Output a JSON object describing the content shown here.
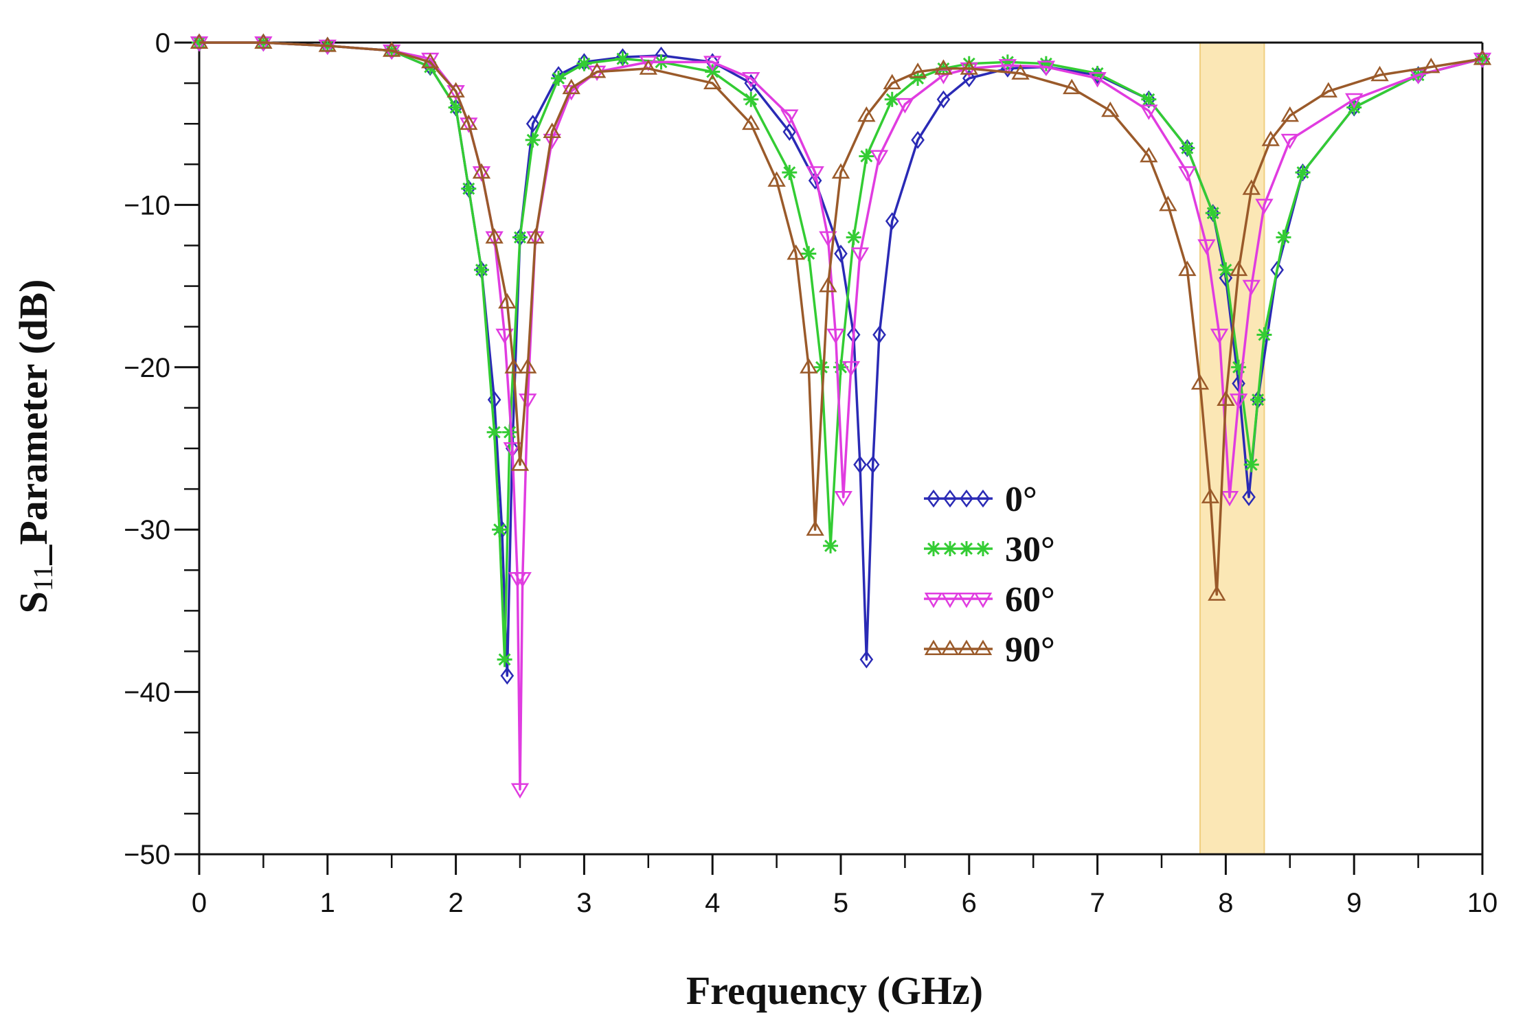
{
  "chart_data": {
    "type": "line",
    "title": "",
    "xlabel": "Frequency (GHz)",
    "ylabel_main": "S",
    "ylabel_sub": "11",
    "ylabel_rest": "_Parameter (dB)",
    "xlim": [
      0,
      10
    ],
    "ylim": [
      -50,
      0
    ],
    "x_ticks": [
      0,
      1,
      2,
      3,
      4,
      5,
      6,
      7,
      8,
      9,
      10
    ],
    "x_tick_labels": [
      "0",
      "1",
      "2",
      "3",
      "4",
      "5",
      "6",
      "7",
      "8",
      "9",
      "10"
    ],
    "y_ticks": [
      0,
      -10,
      -20,
      -30,
      -40,
      -50
    ],
    "y_tick_labels": [
      "0",
      "−10",
      "−20",
      "−30",
      "−40",
      "−50"
    ],
    "highlight_band": {
      "x_start": 7.8,
      "x_end": 8.3,
      "color": "#fbe7b5",
      "edge_color": "#f0cf80"
    },
    "legend_position": "center-right",
    "series": [
      {
        "name": "0°",
        "color": "#2a2ab5",
        "marker": "diamond",
        "x": [
          0,
          0.5,
          1,
          1.5,
          1.8,
          2.0,
          2.1,
          2.2,
          2.3,
          2.36,
          2.4,
          2.44,
          2.5,
          2.6,
          2.8,
          3.0,
          3.3,
          3.6,
          4.0,
          4.3,
          4.6,
          4.8,
          5.0,
          5.1,
          5.15,
          5.2,
          5.25,
          5.3,
          5.4,
          5.6,
          5.8,
          6.0,
          6.3,
          6.6,
          7.0,
          7.4,
          7.7,
          7.9,
          8.0,
          8.1,
          8.18,
          8.25,
          8.4,
          8.6,
          9.0,
          9.5,
          10
        ],
        "y": [
          0,
          0,
          -0.2,
          -0.5,
          -1.5,
          -4,
          -9,
          -14,
          -22,
          -30,
          -39,
          -25,
          -12,
          -5,
          -2,
          -1.2,
          -0.9,
          -0.8,
          -1.2,
          -2.5,
          -5.5,
          -8.5,
          -13,
          -18,
          -26,
          -38,
          -26,
          -18,
          -11,
          -6,
          -3.5,
          -2.2,
          -1.6,
          -1.5,
          -2,
          -3.5,
          -6.5,
          -10.5,
          -14.5,
          -21,
          -28,
          -22,
          -14,
          -8,
          -4,
          -2,
          -1
        ]
      },
      {
        "name": "30°",
        "color": "#33cc33",
        "marker": "asterisk",
        "x": [
          0,
          0.5,
          1,
          1.5,
          1.8,
          2.0,
          2.1,
          2.2,
          2.3,
          2.34,
          2.38,
          2.42,
          2.5,
          2.6,
          2.8,
          3.0,
          3.3,
          3.6,
          4.0,
          4.3,
          4.6,
          4.75,
          4.85,
          4.92,
          5.0,
          5.1,
          5.2,
          5.4,
          5.6,
          5.8,
          6.0,
          6.3,
          6.6,
          7.0,
          7.4,
          7.7,
          7.9,
          8.0,
          8.1,
          8.2,
          8.25,
          8.3,
          8.45,
          8.6,
          9.0,
          9.5,
          10
        ],
        "y": [
          0,
          0,
          -0.2,
          -0.5,
          -1.5,
          -4,
          -9,
          -14,
          -24,
          -30,
          -38,
          -24,
          -12,
          -6,
          -2.2,
          -1.3,
          -1,
          -1.2,
          -1.8,
          -3.5,
          -8,
          -13,
          -20,
          -31,
          -20,
          -12,
          -7,
          -3.5,
          -2.2,
          -1.6,
          -1.3,
          -1.2,
          -1.3,
          -1.9,
          -3.5,
          -6.5,
          -10.5,
          -14,
          -20,
          -26,
          -22,
          -18,
          -12,
          -8,
          -4,
          -2,
          -1
        ]
      },
      {
        "name": "60°",
        "color": "#e03ce0",
        "marker": "triangle-down",
        "x": [
          0,
          0.5,
          1,
          1.5,
          1.8,
          2.0,
          2.1,
          2.2,
          2.3,
          2.38,
          2.44,
          2.48,
          2.5,
          2.52,
          2.56,
          2.62,
          2.75,
          2.9,
          3.1,
          3.5,
          4.0,
          4.3,
          4.6,
          4.8,
          4.9,
          4.96,
          5.02,
          5.08,
          5.15,
          5.3,
          5.5,
          5.8,
          6.0,
          6.3,
          6.6,
          7.0,
          7.4,
          7.7,
          7.85,
          7.95,
          8.03,
          8.1,
          8.2,
          8.3,
          8.5,
          9.0,
          9.5,
          10
        ],
        "y": [
          0,
          0,
          -0.2,
          -0.5,
          -1,
          -3,
          -5,
          -8,
          -12,
          -18,
          -25,
          -33,
          -46,
          -33,
          -22,
          -12,
          -6,
          -3,
          -1.8,
          -1.2,
          -1.2,
          -2.2,
          -4.5,
          -8,
          -12,
          -18,
          -28,
          -20,
          -13,
          -7,
          -3.8,
          -2,
          -1.6,
          -1.4,
          -1.5,
          -2.2,
          -4.2,
          -8,
          -12.5,
          -18,
          -28,
          -22,
          -15,
          -10,
          -6,
          -3.5,
          -2,
          -1
        ]
      },
      {
        "name": "90°",
        "color": "#9a5a2a",
        "marker": "triangle-up",
        "x": [
          0,
          0.5,
          1,
          1.5,
          1.8,
          2.0,
          2.1,
          2.2,
          2.3,
          2.4,
          2.45,
          2.5,
          2.56,
          2.62,
          2.75,
          2.9,
          3.1,
          3.5,
          4.0,
          4.3,
          4.5,
          4.65,
          4.75,
          4.8,
          4.9,
          5.0,
          5.2,
          5.4,
          5.6,
          5.8,
          6.0,
          6.4,
          6.8,
          7.1,
          7.4,
          7.55,
          7.7,
          7.8,
          7.88,
          7.93,
          8.0,
          8.1,
          8.2,
          8.35,
          8.5,
          8.8,
          9.2,
          9.6,
          10
        ],
        "y": [
          0,
          0,
          -0.2,
          -0.5,
          -1.2,
          -3,
          -5,
          -8,
          -12,
          -16,
          -20,
          -26,
          -20,
          -12,
          -5.5,
          -2.8,
          -1.8,
          -1.6,
          -2.5,
          -5,
          -8.5,
          -13,
          -20,
          -30,
          -15,
          -8,
          -4.5,
          -2.5,
          -1.8,
          -1.6,
          -1.6,
          -1.9,
          -2.8,
          -4.2,
          -7,
          -10,
          -14,
          -21,
          -28,
          -34,
          -22,
          -14,
          -9,
          -6,
          -4.5,
          -3,
          -2,
          -1.5,
          -1
        ]
      }
    ]
  }
}
